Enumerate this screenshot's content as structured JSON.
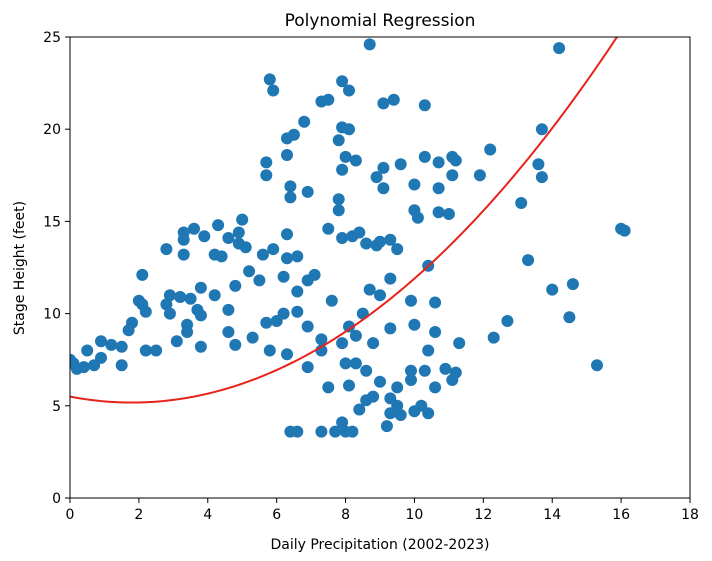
{
  "chart_data": {
    "type": "scatter",
    "title": "Polynomial Regression",
    "xlabel": "Daily Precipitation (2002-2023)",
    "ylabel": "Stage Height (feet)",
    "xlim": [
      0,
      18
    ],
    "ylim": [
      0,
      25
    ],
    "xticks": [
      "0",
      "2",
      "4",
      "6",
      "8",
      "10",
      "12",
      "14",
      "16",
      "18"
    ],
    "yticks": [
      "0",
      "5",
      "10",
      "15",
      "20",
      "25"
    ],
    "grid": false,
    "point_color": "#1f77b4",
    "fit_color": "#e8231a",
    "fit": {
      "type": "polynomial",
      "degree": 2,
      "coefficients": [
        5.5,
        -0.36,
        0.1
      ],
      "x_range": [
        0,
        18
      ]
    },
    "series": [
      {
        "values": [
          [
            6.8,
            20.4
          ],
          [
            5.8,
            22.7
          ],
          [
            5.9,
            22.1
          ],
          [
            6.3,
            19.5
          ],
          [
            6.5,
            19.7
          ],
          [
            6.3,
            18.6
          ],
          [
            5.7,
            18.2
          ],
          [
            5.7,
            17.5
          ],
          [
            6.4,
            16.9
          ],
          [
            6.4,
            16.3
          ],
          [
            6.9,
            16.6
          ],
          [
            7.3,
            21.5
          ],
          [
            7.5,
            21.6
          ],
          [
            7.9,
            22.6
          ],
          [
            8.1,
            22.1
          ],
          [
            7.9,
            20.1
          ],
          [
            7.8,
            19.4
          ],
          [
            8.1,
            20.0
          ],
          [
            8.0,
            18.5
          ],
          [
            7.9,
            17.8
          ],
          [
            8.3,
            18.3
          ],
          [
            8.7,
            24.6
          ],
          [
            9.1,
            21.4
          ],
          [
            9.4,
            21.6
          ],
          [
            10.3,
            21.3
          ],
          [
            9.1,
            17.9
          ],
          [
            8.9,
            17.4
          ],
          [
            9.1,
            16.8
          ],
          [
            9.6,
            18.1
          ],
          [
            10.0,
            17.0
          ],
          [
            10.3,
            18.5
          ],
          [
            10.7,
            18.2
          ],
          [
            11.1,
            18.5
          ],
          [
            11.2,
            18.3
          ],
          [
            10.7,
            16.8
          ],
          [
            11.1,
            17.5
          ],
          [
            11.9,
            17.5
          ],
          [
            12.2,
            18.9
          ],
          [
            10.0,
            15.6
          ],
          [
            10.1,
            15.2
          ],
          [
            10.7,
            15.5
          ],
          [
            11.0,
            15.4
          ],
          [
            7.8,
            16.2
          ],
          [
            7.8,
            15.6
          ],
          [
            7.5,
            14.6
          ],
          [
            7.9,
            14.1
          ],
          [
            8.2,
            14.2
          ],
          [
            8.4,
            14.4
          ],
          [
            8.6,
            13.8
          ],
          [
            8.9,
            13.7
          ],
          [
            9.0,
            13.9
          ],
          [
            9.3,
            14.0
          ],
          [
            9.5,
            13.5
          ],
          [
            10.4,
            12.6
          ],
          [
            13.1,
            16.0
          ],
          [
            13.6,
            18.1
          ],
          [
            13.7,
            17.4
          ],
          [
            13.7,
            20.0
          ],
          [
            14.2,
            24.4
          ],
          [
            13.3,
            12.9
          ],
          [
            14.0,
            11.3
          ],
          [
            14.6,
            11.6
          ],
          [
            14.5,
            9.8
          ],
          [
            16.0,
            14.6
          ],
          [
            16.1,
            14.5
          ],
          [
            15.3,
            7.2
          ],
          [
            12.7,
            9.6
          ],
          [
            12.3,
            8.7
          ],
          [
            11.3,
            8.4
          ],
          [
            10.6,
            10.6
          ],
          [
            10.6,
            9.0
          ],
          [
            10.4,
            8.0
          ],
          [
            9.3,
            9.2
          ],
          [
            9.9,
            10.7
          ],
          [
            10.0,
            9.4
          ],
          [
            8.7,
            11.3
          ],
          [
            9.0,
            11.0
          ],
          [
            9.3,
            11.9
          ],
          [
            8.5,
            10.0
          ],
          [
            8.1,
            9.3
          ],
          [
            8.3,
            8.8
          ],
          [
            8.8,
            8.4
          ],
          [
            10.9,
            7.0
          ],
          [
            11.2,
            6.8
          ],
          [
            11.1,
            6.4
          ],
          [
            10.6,
            6.0
          ],
          [
            9.9,
            6.4
          ],
          [
            9.9,
            6.9
          ],
          [
            10.3,
            6.9
          ],
          [
            10.2,
            5.0
          ],
          [
            10.4,
            4.6
          ],
          [
            9.3,
            4.6
          ],
          [
            9.6,
            4.5
          ],
          [
            10.0,
            4.7
          ],
          [
            9.2,
            3.9
          ],
          [
            8.0,
            3.6
          ],
          [
            8.2,
            3.6
          ],
          [
            7.9,
            4.1
          ],
          [
            7.3,
            3.6
          ],
          [
            7.7,
            3.6
          ],
          [
            6.6,
            3.6
          ],
          [
            6.4,
            3.6
          ],
          [
            5.0,
            15.1
          ],
          [
            4.3,
            14.8
          ],
          [
            4.6,
            14.1
          ],
          [
            4.9,
            14.4
          ],
          [
            3.6,
            14.6
          ],
          [
            3.9,
            14.2
          ],
          [
            3.3,
            14.4
          ],
          [
            3.3,
            14.0
          ],
          [
            2.8,
            13.5
          ],
          [
            3.3,
            13.2
          ],
          [
            4.2,
            13.2
          ],
          [
            4.4,
            13.1
          ],
          [
            4.9,
            13.8
          ],
          [
            5.1,
            13.6
          ],
          [
            5.6,
            13.2
          ],
          [
            5.9,
            13.5
          ],
          [
            6.3,
            14.3
          ],
          [
            6.6,
            13.1
          ],
          [
            6.2,
            12.0
          ],
          [
            7.1,
            12.1
          ],
          [
            6.3,
            13.0
          ],
          [
            2.1,
            12.1
          ],
          [
            2.8,
            10.5
          ],
          [
            2.9,
            11.0
          ],
          [
            3.2,
            10.9
          ],
          [
            2.0,
            10.7
          ],
          [
            2.1,
            10.5
          ],
          [
            1.8,
            9.5
          ],
          [
            1.7,
            9.1
          ],
          [
            2.2,
            10.1
          ],
          [
            2.9,
            10.0
          ],
          [
            3.5,
            10.8
          ],
          [
            3.7,
            10.2
          ],
          [
            3.8,
            11.4
          ],
          [
            4.2,
            11.0
          ],
          [
            3.8,
            9.9
          ],
          [
            4.6,
            10.2
          ],
          [
            4.8,
            11.5
          ],
          [
            5.2,
            12.3
          ],
          [
            5.5,
            11.8
          ],
          [
            3.4,
            9.4
          ],
          [
            3.4,
            9.0
          ],
          [
            3.1,
            8.5
          ],
          [
            4.6,
            9.0
          ],
          [
            5.3,
            8.7
          ],
          [
            5.7,
            9.5
          ],
          [
            6.0,
            9.6
          ],
          [
            6.2,
            10.0
          ],
          [
            6.6,
            10.1
          ],
          [
            6.9,
            9.3
          ],
          [
            7.3,
            8.6
          ],
          [
            7.6,
            10.7
          ],
          [
            7.9,
            8.4
          ],
          [
            6.6,
            11.2
          ],
          [
            6.9,
            11.8
          ],
          [
            2.2,
            8.0
          ],
          [
            1.5,
            8.2
          ],
          [
            1.2,
            8.3
          ],
          [
            0.9,
            7.6
          ],
          [
            0.5,
            8.0
          ],
          [
            0.9,
            8.5
          ],
          [
            1.5,
            7.2
          ],
          [
            2.5,
            8.0
          ],
          [
            3.8,
            8.2
          ],
          [
            4.8,
            8.3
          ],
          [
            5.8,
            8.0
          ],
          [
            6.3,
            7.8
          ],
          [
            7.3,
            8.0
          ],
          [
            6.9,
            7.1
          ],
          [
            8.0,
            7.3
          ],
          [
            8.3,
            7.3
          ],
          [
            8.6,
            6.9
          ],
          [
            9.0,
            6.3
          ],
          [
            8.8,
            5.5
          ],
          [
            8.6,
            5.3
          ],
          [
            8.4,
            4.8
          ],
          [
            9.5,
            6.0
          ],
          [
            9.3,
            5.4
          ],
          [
            9.5,
            5.0
          ],
          [
            8.1,
            6.1
          ],
          [
            7.5,
            6.0
          ],
          [
            0.0,
            7.5
          ],
          [
            0.1,
            7.3
          ],
          [
            0.2,
            7.0
          ],
          [
            0.4,
            7.1
          ],
          [
            0.7,
            7.2
          ]
        ]
      }
    ]
  }
}
